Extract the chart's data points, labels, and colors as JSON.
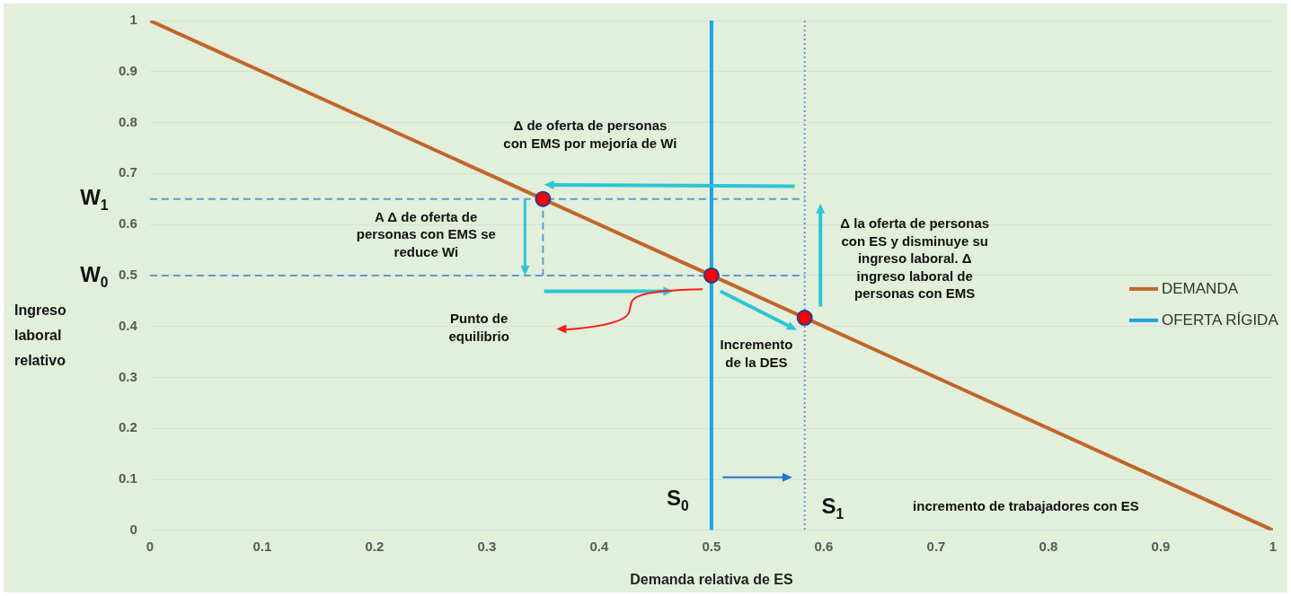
{
  "chart_data": {
    "type": "line",
    "xlabel": "Demanda relativa de ES",
    "ylabel": "Ingreso laboral relativo",
    "xlim": [
      0,
      1
    ],
    "ylim": [
      0,
      1
    ],
    "xticks": [
      0,
      0.1,
      0.2,
      0.3,
      0.4,
      0.5,
      0.6,
      0.7,
      0.8,
      0.9,
      1
    ],
    "yticks": [
      0,
      0.1,
      0.2,
      0.3,
      0.4,
      0.5,
      0.6,
      0.7,
      0.8,
      0.9,
      1
    ],
    "grid": "y",
    "legend": "right",
    "series": [
      {
        "name": "DEMANDA",
        "type": "line",
        "color": "#c0652b",
        "x": [
          0,
          1
        ],
        "values": [
          1,
          0
        ]
      },
      {
        "name": "OFERTA RÍGIDA",
        "type": "line",
        "color": "#1aa3e8",
        "x": [
          0.5,
          0.5
        ],
        "values": [
          0,
          1
        ]
      },
      {
        "type": "line",
        "color": "#5b9bd5",
        "line_style": "dashed",
        "x": [
          0,
          0.583
        ],
        "values": [
          0.65,
          0.65
        ]
      },
      {
        "type": "line",
        "color": "#5b9bd5",
        "line_style": "dashed",
        "x": [
          0,
          0.583
        ],
        "values": [
          0.5,
          0.5
        ]
      },
      {
        "type": "line",
        "color": "#5b9bd5",
        "line_style": "dashed",
        "x": [
          0.35,
          0.35
        ],
        "values": [
          0.65,
          0.5
        ]
      },
      {
        "type": "scatter",
        "color": "#ff0000",
        "marker": "circle",
        "x": [
          0.35,
          0.5,
          0.583
        ],
        "values": [
          0.65,
          0.5,
          0.417
        ]
      }
    ],
    "ref_lines": [
      {
        "axis": "x",
        "value": 0.583,
        "color": "#5b9bd5",
        "line_style": "dotted"
      }
    ],
    "annotations": [
      "Δ de oferta de personas\ncon EMS por mejoría de Wi",
      "A Δ de oferta de\npersonas con EMS se\nreduce Wi",
      "Punto de\nequilibrio",
      "Incremento\nde la DES",
      "Δ la oferta de personas\ncon ES y disminuye su\ningreso laboral. Δ\ningreso laboral de\npersonas con EMS",
      "W$_{1}$",
      "W$_{0}$",
      "S$_{0}$",
      "S$_{1}$",
      "incremento de trabajadores con ES"
    ]
  }
}
